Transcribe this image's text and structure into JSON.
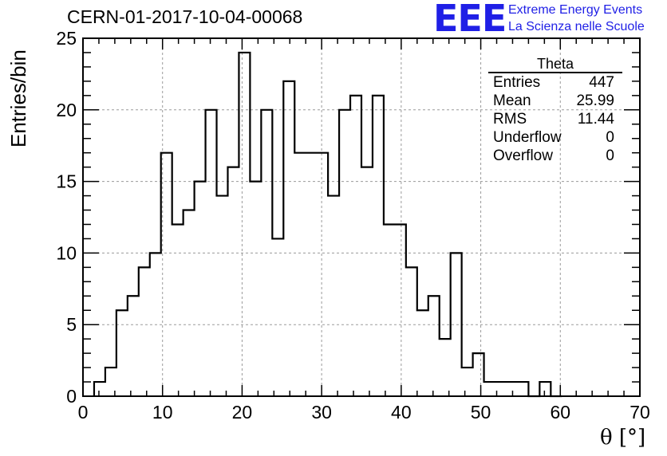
{
  "header": {
    "run_title": "CERN-01-2017-10-04-00068",
    "logo_text": "EEE",
    "logo_line1": "Extreme Energy Events",
    "logo_line2": "La Scienza nelle Scuole"
  },
  "stats_box": {
    "title": "Theta",
    "rows": [
      {
        "label": "Entries",
        "value": "447"
      },
      {
        "label": "Mean",
        "value": "25.99"
      },
      {
        "label": "RMS",
        "value": "11.44"
      },
      {
        "label": "Underflow",
        "value": "0"
      },
      {
        "label": "Overflow",
        "value": "0"
      }
    ]
  },
  "chart_data": {
    "type": "bar",
    "style": "step-histogram",
    "title": "CERN-01-2017-10-04-00068",
    "xlabel": "θ [°]",
    "ylabel": "Entries/bin",
    "xlim": [
      0,
      70
    ],
    "ylim": [
      0,
      25
    ],
    "xticks": [
      0,
      10,
      20,
      30,
      40,
      50,
      60,
      70
    ],
    "yticks": [
      0,
      5,
      10,
      15,
      20,
      25
    ],
    "grid": true,
    "bin_width": 1.4,
    "bin_edges_start": 1.4,
    "values": [
      1,
      2,
      6,
      7,
      9,
      10,
      17,
      12,
      13,
      15,
      20,
      14,
      16,
      24,
      15,
      20,
      11,
      22,
      17,
      17,
      17,
      14,
      20,
      21,
      16,
      21,
      12,
      12,
      9,
      6,
      7,
      4,
      10,
      2,
      3,
      1,
      1,
      1,
      1,
      0,
      1,
      0
    ],
    "line_color": "#000000",
    "grid_color": "#9a9a9a",
    "brand_color": "#1f1fe6"
  }
}
